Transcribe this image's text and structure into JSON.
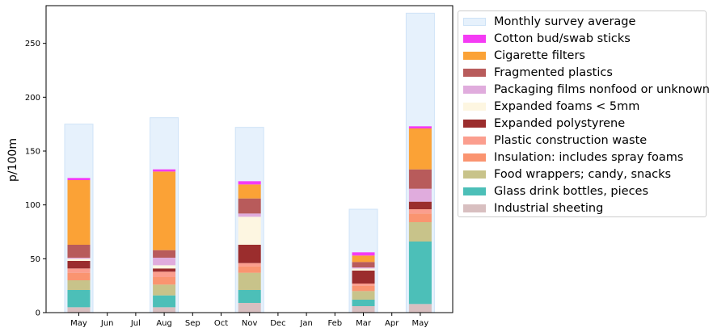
{
  "chart_data": {
    "type": "bar",
    "stacked": true,
    "ylabel": "p/100m",
    "ylim": [
      0,
      285
    ],
    "yticks": [
      0,
      50,
      100,
      150,
      200,
      250
    ],
    "categories": [
      "May",
      "Jun",
      "Jul",
      "Aug",
      "Sep",
      "Oct",
      "Nov",
      "Dec",
      "Jan",
      "Feb",
      "Mar",
      "Apr",
      "May"
    ],
    "legend_position": "outside-right-top",
    "background_series": {
      "name": "Monthly survey average",
      "color": "#e6f1fc",
      "values": [
        175,
        null,
        null,
        181,
        null,
        null,
        172,
        null,
        null,
        null,
        96,
        null,
        278
      ]
    },
    "series": [
      {
        "name": "Industrial sheeting",
        "color": "#d8bfc0",
        "values": [
          5,
          0,
          0,
          5,
          0,
          0,
          9,
          0,
          0,
          0,
          6,
          0,
          8
        ]
      },
      {
        "name": "Glass drink bottles, pieces",
        "color": "#4cbfb8",
        "values": [
          16,
          0,
          0,
          11,
          0,
          0,
          12,
          0,
          0,
          0,
          6,
          0,
          58
        ]
      },
      {
        "name": "Food wrappers; candy, snacks",
        "color": "#c8c38a",
        "values": [
          9,
          0,
          0,
          10,
          0,
          0,
          16,
          0,
          0,
          0,
          8,
          0,
          18
        ]
      },
      {
        "name": "Insulation: includes spray foams",
        "color": "#fa9470",
        "values": [
          7,
          0,
          0,
          7,
          0,
          0,
          6,
          0,
          0,
          0,
          5,
          0,
          8
        ]
      },
      {
        "name": "Plastic construction waste",
        "color": "#fb9e8e",
        "values": [
          4,
          0,
          0,
          5,
          0,
          0,
          3,
          0,
          0,
          0,
          2,
          0,
          4
        ]
      },
      {
        "name": "Expanded polystyrene",
        "color": "#9b2d2d",
        "values": [
          7,
          0,
          0,
          3,
          0,
          0,
          17,
          0,
          0,
          0,
          12,
          0,
          7
        ]
      },
      {
        "name": "Expanded foams < 5mm",
        "color": "#fdf6e1",
        "values": [
          2,
          0,
          0,
          3,
          0,
          0,
          26,
          0,
          0,
          0,
          2,
          0,
          0
        ]
      },
      {
        "name": "Packaging films nonfood or unknown",
        "color": "#e0acdd",
        "values": [
          1,
          0,
          0,
          7,
          0,
          0,
          3,
          0,
          0,
          0,
          1,
          0,
          12
        ]
      },
      {
        "name": "Fragmented plastics",
        "color": "#b85b5b",
        "values": [
          12,
          0,
          0,
          7,
          0,
          0,
          14,
          0,
          0,
          0,
          5,
          0,
          18
        ]
      },
      {
        "name": "Cigarette filters",
        "color": "#fba236",
        "values": [
          60,
          0,
          0,
          73,
          0,
          0,
          13,
          0,
          0,
          0,
          6,
          0,
          38
        ]
      },
      {
        "name": "Cotton bud/swab sticks",
        "color": "#f43bf4",
        "values": [
          2,
          0,
          0,
          2,
          0,
          0,
          3,
          0,
          0,
          0,
          3,
          0,
          2
        ]
      }
    ]
  }
}
